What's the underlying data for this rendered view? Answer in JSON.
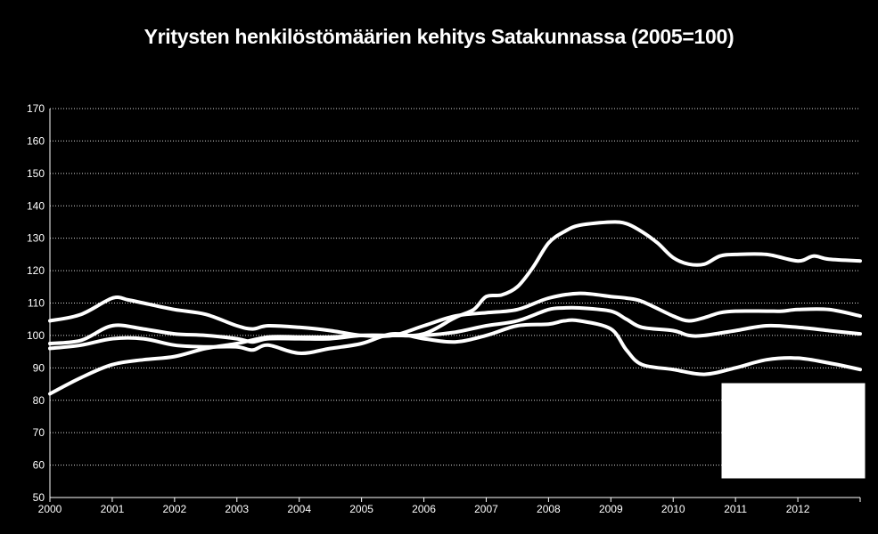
{
  "chart_data": {
    "type": "line",
    "title": "Yritysten henkilöstömäärien kehitys Satakunnassa (2005=100)",
    "xlabel": "",
    "ylabel": "",
    "xlim": [
      2000,
      2013
    ],
    "ylim": [
      50,
      170
    ],
    "y_ticks": [
      50,
      60,
      70,
      80,
      90,
      100,
      110,
      120,
      130,
      140,
      150,
      160,
      170
    ],
    "x_ticks": [
      "2000",
      "2001",
      "2002",
      "2003",
      "2004",
      "2005",
      "2006",
      "2007",
      "2008",
      "2009",
      "2010",
      "2011",
      "2012"
    ],
    "grid": true,
    "legend": "box at bottom-right (contents not visible)",
    "line_color": "#ffffff",
    "background": "#000000",
    "series": [
      {
        "x": [
          2000,
          2000.5,
          2001,
          2001.25,
          2001.5,
          2002,
          2002.5,
          2003,
          2003.25,
          2003.5,
          2004,
          2004.5,
          2005,
          2005.5,
          2006,
          2006.5,
          2007,
          2007.5,
          2008,
          2008.5,
          2009,
          2009.25,
          2009.5,
          2010,
          2010.25,
          2010.5,
          2010.75,
          2011,
          2011.5,
          2011.75,
          2012,
          2012.5,
          2013
        ],
        "values": [
          104.5,
          106.5,
          111.5,
          111,
          110,
          108,
          106.5,
          103,
          102,
          103,
          102.5,
          101.5,
          100,
          100,
          103,
          106,
          107,
          108,
          111.5,
          113,
          112,
          111.5,
          110.5,
          106,
          104.5,
          105.5,
          107,
          107.5,
          107.5,
          107.5,
          108,
          108,
          106
        ]
      },
      {
        "x": [
          2000,
          2000.5,
          2001,
          2001.5,
          2002,
          2002.5,
          2003,
          2003.25,
          2003.5,
          2004,
          2004.5,
          2005,
          2005.5,
          2006,
          2006.5,
          2007,
          2007.5,
          2008,
          2008.25,
          2008.5,
          2009,
          2009.25,
          2009.5,
          2010,
          2010.25,
          2010.5,
          2011,
          2011.5,
          2012,
          2012.5,
          2013
        ],
        "values": [
          97.5,
          98.5,
          103,
          102,
          100.5,
          100,
          99,
          98,
          99,
          99,
          99,
          100,
          100,
          100,
          101,
          103,
          104.5,
          108,
          108.5,
          108.5,
          107.5,
          105,
          102.5,
          101.5,
          100,
          100,
          101.5,
          103,
          102.5,
          101.5,
          100.5
        ]
      },
      {
        "x": [
          2000,
          2000.5,
          2001,
          2001.5,
          2002,
          2002.5,
          2003,
          2003.25,
          2003.5,
          2004,
          2004.5,
          2005,
          2005.5,
          2006,
          2006.5,
          2007,
          2007.5,
          2008,
          2008.25,
          2008.5,
          2009,
          2009.25,
          2009.5,
          2010,
          2010.5,
          2011,
          2011.5,
          2012,
          2012.5,
          2013
        ],
        "values": [
          96,
          97,
          99,
          99,
          97,
          96.5,
          96.5,
          95.5,
          97,
          94.5,
          96,
          97.5,
          100.5,
          99,
          98,
          100,
          103,
          103.5,
          104.5,
          104.5,
          102,
          95.5,
          91,
          89.5,
          88,
          90,
          92.5,
          93,
          91.5,
          89.5
        ]
      },
      {
        "x": [
          2000,
          2000.5,
          2001,
          2001.5,
          2002,
          2002.5,
          2003,
          2003.5,
          2004,
          2004.5,
          2005,
          2005.5,
          2006,
          2006.5,
          2006.8,
          2007,
          2007.25,
          2007.5,
          2007.75,
          2008,
          2008.25,
          2008.5,
          2009,
          2009.25,
          2009.5,
          2009.75,
          2010,
          2010.25,
          2010.5,
          2010.75,
          2011,
          2011.5,
          2012,
          2012.25,
          2012.5,
          2013
        ],
        "values": [
          82,
          87,
          91,
          92.5,
          93.5,
          96,
          97.5,
          99.5,
          99.5,
          99.5,
          100,
          100,
          100.5,
          105.5,
          108,
          112,
          112.5,
          115,
          121,
          128.5,
          132,
          134,
          135,
          134.5,
          132,
          128.5,
          124,
          122,
          122,
          124.5,
          125,
          125,
          123,
          124.5,
          123.5,
          123
        ]
      }
    ]
  }
}
